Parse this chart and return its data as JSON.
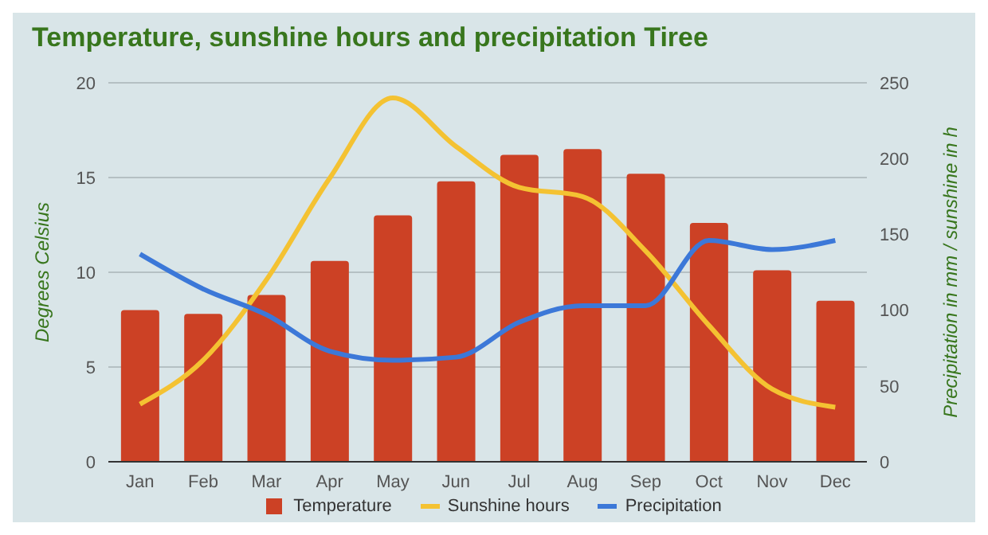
{
  "chart_data": {
    "type": "bar",
    "title": "Temperature, sunshine hours and precipitation Tiree",
    "ylabel": "Degrees Celsius",
    "y2label": "Precipitation in mm / sunshine in h",
    "categories": [
      "Jan",
      "Feb",
      "Mar",
      "Apr",
      "May",
      "Jun",
      "Jul",
      "Aug",
      "Sep",
      "Oct",
      "Nov",
      "Dec"
    ],
    "series": [
      {
        "name": "Temperature",
        "color": "#cc4125",
        "values": [
          8.0,
          7.8,
          8.8,
          10.6,
          13.0,
          14.8,
          16.2,
          16.5,
          15.2,
          12.6,
          10.1,
          8.5
        ]
      },
      {
        "name": "Sunshine hours",
        "type": "line",
        "axis": "y2",
        "color": "#f4c232",
        "values": [
          38,
          67,
          120,
          187,
          240,
          208,
          181,
          175,
          139,
          90,
          48,
          36
        ]
      },
      {
        "name": "Precipitation",
        "type": "line",
        "axis": "y2",
        "color": "#3c78d8",
        "values": [
          137,
          114,
          97,
          73,
          67,
          69,
          92,
          103,
          103,
          146,
          140,
          146
        ]
      }
    ],
    "ylim": [
      0,
      20
    ],
    "yticks": [
      0,
      5,
      10,
      15,
      20
    ],
    "y2lim": [
      0,
      250
    ],
    "y2ticks": [
      0,
      50,
      100,
      150,
      200,
      250
    ],
    "grid": "y",
    "legend": "bottom",
    "marker": "none",
    "line_style": "solid"
  }
}
